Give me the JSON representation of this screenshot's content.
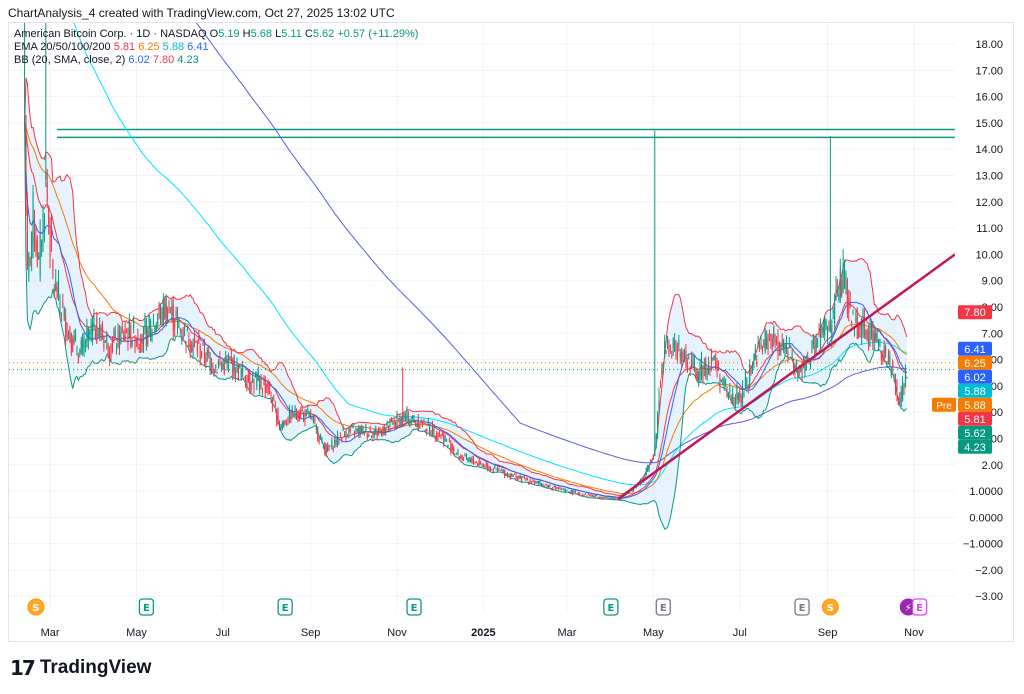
{
  "attribution": "ChartAnalysis_4 created with TradingView.com, Oct 27, 2025 13:02 UTC",
  "legend": {
    "title": "American Bitcoin Corp. · 1D · NASDAQ",
    "o_label": "O",
    "o_value": "5.19",
    "h_label": "H",
    "h_value": "5.68",
    "l_label": "L",
    "l_value": "5.11",
    "c_label": "C",
    "c_value": "5.62",
    "change": "+0.57 (+11.29%)",
    "ema_label": "EMA 20/50/100/200",
    "ema20": "5.81",
    "ema50": "6.25",
    "ema100": "5.88",
    "ema200": "6.41",
    "bb_label": "BB (20, SMA, close, 2)",
    "bb_mid": "6.02",
    "bb_up": "7.80",
    "bb_low": "4.23"
  },
  "brand": "TradingView",
  "colors": {
    "up": "#089981",
    "down": "#f23645",
    "ema20": "#f23645",
    "ema50": "#f57c00",
    "ema100": "#00e5ff",
    "ema200": "#5b5be8",
    "bb_mid": "#2962ff",
    "bb_up": "#f23645",
    "bb_low": "#089981",
    "bb_fill": "#d6ebfa",
    "resistance": "#089981",
    "trendline": "#c2185b",
    "pre": "#f57c00"
  },
  "chart_data": {
    "type": "candlestick",
    "symbol": "American Bitcoin Corp.",
    "interval": "1D",
    "exchange": "NASDAQ",
    "y_ticks": [
      18.0,
      17.0,
      16.0,
      15.0,
      14.0,
      13.0,
      12.0,
      11.0,
      10.0,
      9.0,
      8.0,
      7.0,
      6.0,
      5.0,
      4.0,
      3.0,
      2.0,
      1.0,
      0.0,
      -1.0,
      -2.0,
      -3.0
    ],
    "y_tick_labels": [
      "18.00",
      "17.00",
      "16.00",
      "15.00",
      "14.00",
      "13.00",
      "12.00",
      "11.00",
      "10.00",
      "9.00",
      "8.00",
      "7.00",
      "6.00",
      "5.00",
      "4.00",
      "3.00",
      "2.00",
      "1.0000",
      "0.0000",
      "−1.0000",
      "−2.00",
      "−3.00"
    ],
    "ylim": [
      -3.6,
      18.8
    ],
    "x_labels": [
      "Mar",
      "May",
      "Jul",
      "Sep",
      "Nov",
      "2025",
      "Mar",
      "May",
      "Jul",
      "Sep",
      "Nov"
    ],
    "x_label_dates": [
      "2024-03-01",
      "2024-05-01",
      "2024-07-01",
      "2024-09-01",
      "2024-11-01",
      "2025-01-01",
      "2025-03-01",
      "2025-05-01",
      "2025-07-01",
      "2025-09-01",
      "2025-11-01"
    ],
    "xlim": [
      "2024-02-01",
      "2025-11-30"
    ],
    "price_points": [
      [
        "2024-02-12",
        15.0
      ],
      [
        "2024-02-14",
        9.0
      ],
      [
        "2024-02-18",
        11.5
      ],
      [
        "2024-02-22",
        9.5
      ],
      [
        "2024-02-27",
        12.8
      ],
      [
        "2024-03-03",
        9.0
      ],
      [
        "2024-03-08",
        8.2
      ],
      [
        "2024-03-14",
        7.0
      ],
      [
        "2024-03-22",
        6.2
      ],
      [
        "2024-04-01",
        7.3
      ],
      [
        "2024-04-12",
        6.5
      ],
      [
        "2024-04-24",
        7.0
      ],
      [
        "2024-05-05",
        6.8
      ],
      [
        "2024-05-15",
        7.5
      ],
      [
        "2024-05-22",
        8.0
      ],
      [
        "2024-06-01",
        7.2
      ],
      [
        "2024-06-12",
        6.5
      ],
      [
        "2024-06-25",
        5.8
      ],
      [
        "2024-07-08",
        5.8
      ],
      [
        "2024-07-20",
        5.2
      ],
      [
        "2024-08-01",
        5.0
      ],
      [
        "2024-08-10",
        3.5
      ],
      [
        "2024-08-22",
        4.0
      ],
      [
        "2024-09-01",
        3.8
      ],
      [
        "2024-09-12",
        2.5
      ],
      [
        "2024-09-24",
        3.2
      ],
      [
        "2024-10-06",
        3.3
      ],
      [
        "2024-10-18",
        3.2
      ],
      [
        "2024-10-30",
        3.6
      ],
      [
        "2024-11-08",
        3.8
      ],
      [
        "2024-11-20",
        3.5
      ],
      [
        "2024-12-02",
        3.1
      ],
      [
        "2024-12-15",
        2.3
      ],
      [
        "2025-01-01",
        2.0
      ],
      [
        "2025-01-20",
        1.6
      ],
      [
        "2025-02-08",
        1.3
      ],
      [
        "2025-02-28",
        1.0
      ],
      [
        "2025-03-20",
        0.8
      ],
      [
        "2025-04-08",
        0.7
      ],
      [
        "2025-04-24",
        1.5
      ],
      [
        "2025-05-02",
        2.5
      ],
      [
        "2025-05-05",
        5.0
      ],
      [
        "2025-05-10",
        6.6
      ],
      [
        "2025-05-20",
        6.2
      ],
      [
        "2025-06-01",
        5.5
      ],
      [
        "2025-06-12",
        6.0
      ],
      [
        "2025-06-22",
        4.7
      ],
      [
        "2025-07-02",
        4.5
      ],
      [
        "2025-07-12",
        6.2
      ],
      [
        "2025-07-22",
        6.8
      ],
      [
        "2025-08-02",
        6.5
      ],
      [
        "2025-08-12",
        5.4
      ],
      [
        "2025-08-22",
        6.4
      ],
      [
        "2025-08-30",
        7.2
      ],
      [
        "2025-09-03",
        7.0
      ],
      [
        "2025-09-07",
        8.6
      ],
      [
        "2025-09-12",
        9.1
      ],
      [
        "2025-09-18",
        7.5
      ],
      [
        "2025-09-28",
        7.2
      ],
      [
        "2025-10-08",
        6.6
      ],
      [
        "2025-10-16",
        5.6
      ],
      [
        "2025-10-22",
        4.3
      ],
      [
        "2025-10-24",
        5.0
      ],
      [
        "2025-10-27",
        5.62
      ]
    ],
    "spikes": [
      {
        "date": "2024-02-12",
        "high": 18.8
      },
      {
        "date": "2024-02-27",
        "high": 18.8
      },
      {
        "date": "2024-11-05",
        "high": 5.7
      },
      {
        "date": "2025-05-02",
        "high": 14.7
      },
      {
        "date": "2025-09-03",
        "high": 14.5
      },
      {
        "date": "2025-09-12",
        "high": 10.2
      }
    ],
    "resistance_lines": [
      14.75,
      14.45
    ],
    "trendline": {
      "from": [
        "2025-04-06",
        0.7
      ],
      "to": [
        "2025-11-30",
        10.0
      ]
    },
    "price_labels": [
      {
        "value": 7.8,
        "label": "7.80",
        "color": "#f23645"
      },
      {
        "value": 6.41,
        "label": "6.41",
        "color": "#2962ff"
      },
      {
        "value": 6.25,
        "label": "6.25",
        "color": "#f57c00"
      },
      {
        "value": 6.02,
        "label": "6.02",
        "color": "#2962ff"
      },
      {
        "value": 5.88,
        "label": "5.88",
        "color": "#00bcd4"
      },
      {
        "value": 5.88,
        "label": "5.88",
        "color": "#f57c00",
        "prefix": "Pre"
      },
      {
        "value": 5.81,
        "label": "5.81",
        "color": "#f23645"
      },
      {
        "value": 5.62,
        "label": "5.62",
        "color": "#089981"
      },
      {
        "value": 4.23,
        "label": "4.23",
        "color": "#089981"
      }
    ],
    "events": [
      {
        "date": "2024-02-20",
        "type": "S",
        "kind": "split"
      },
      {
        "date": "2024-05-08",
        "type": "E",
        "kind": "earnings"
      },
      {
        "date": "2024-08-14",
        "type": "E",
        "kind": "earnings"
      },
      {
        "date": "2024-11-13",
        "type": "E",
        "kind": "earnings"
      },
      {
        "date": "2025-04-01",
        "type": "E",
        "kind": "earnings"
      },
      {
        "date": "2025-05-08",
        "type": "E",
        "kind": "earnings-past"
      },
      {
        "date": "2025-08-14",
        "type": "E",
        "kind": "earnings-past"
      },
      {
        "date": "2025-09-03",
        "type": "S",
        "kind": "split"
      },
      {
        "date": "2025-10-28",
        "type": "⚡",
        "kind": "news"
      },
      {
        "date": "2025-11-05",
        "type": "E",
        "kind": "earnings-upcoming"
      }
    ],
    "grid": true
  }
}
